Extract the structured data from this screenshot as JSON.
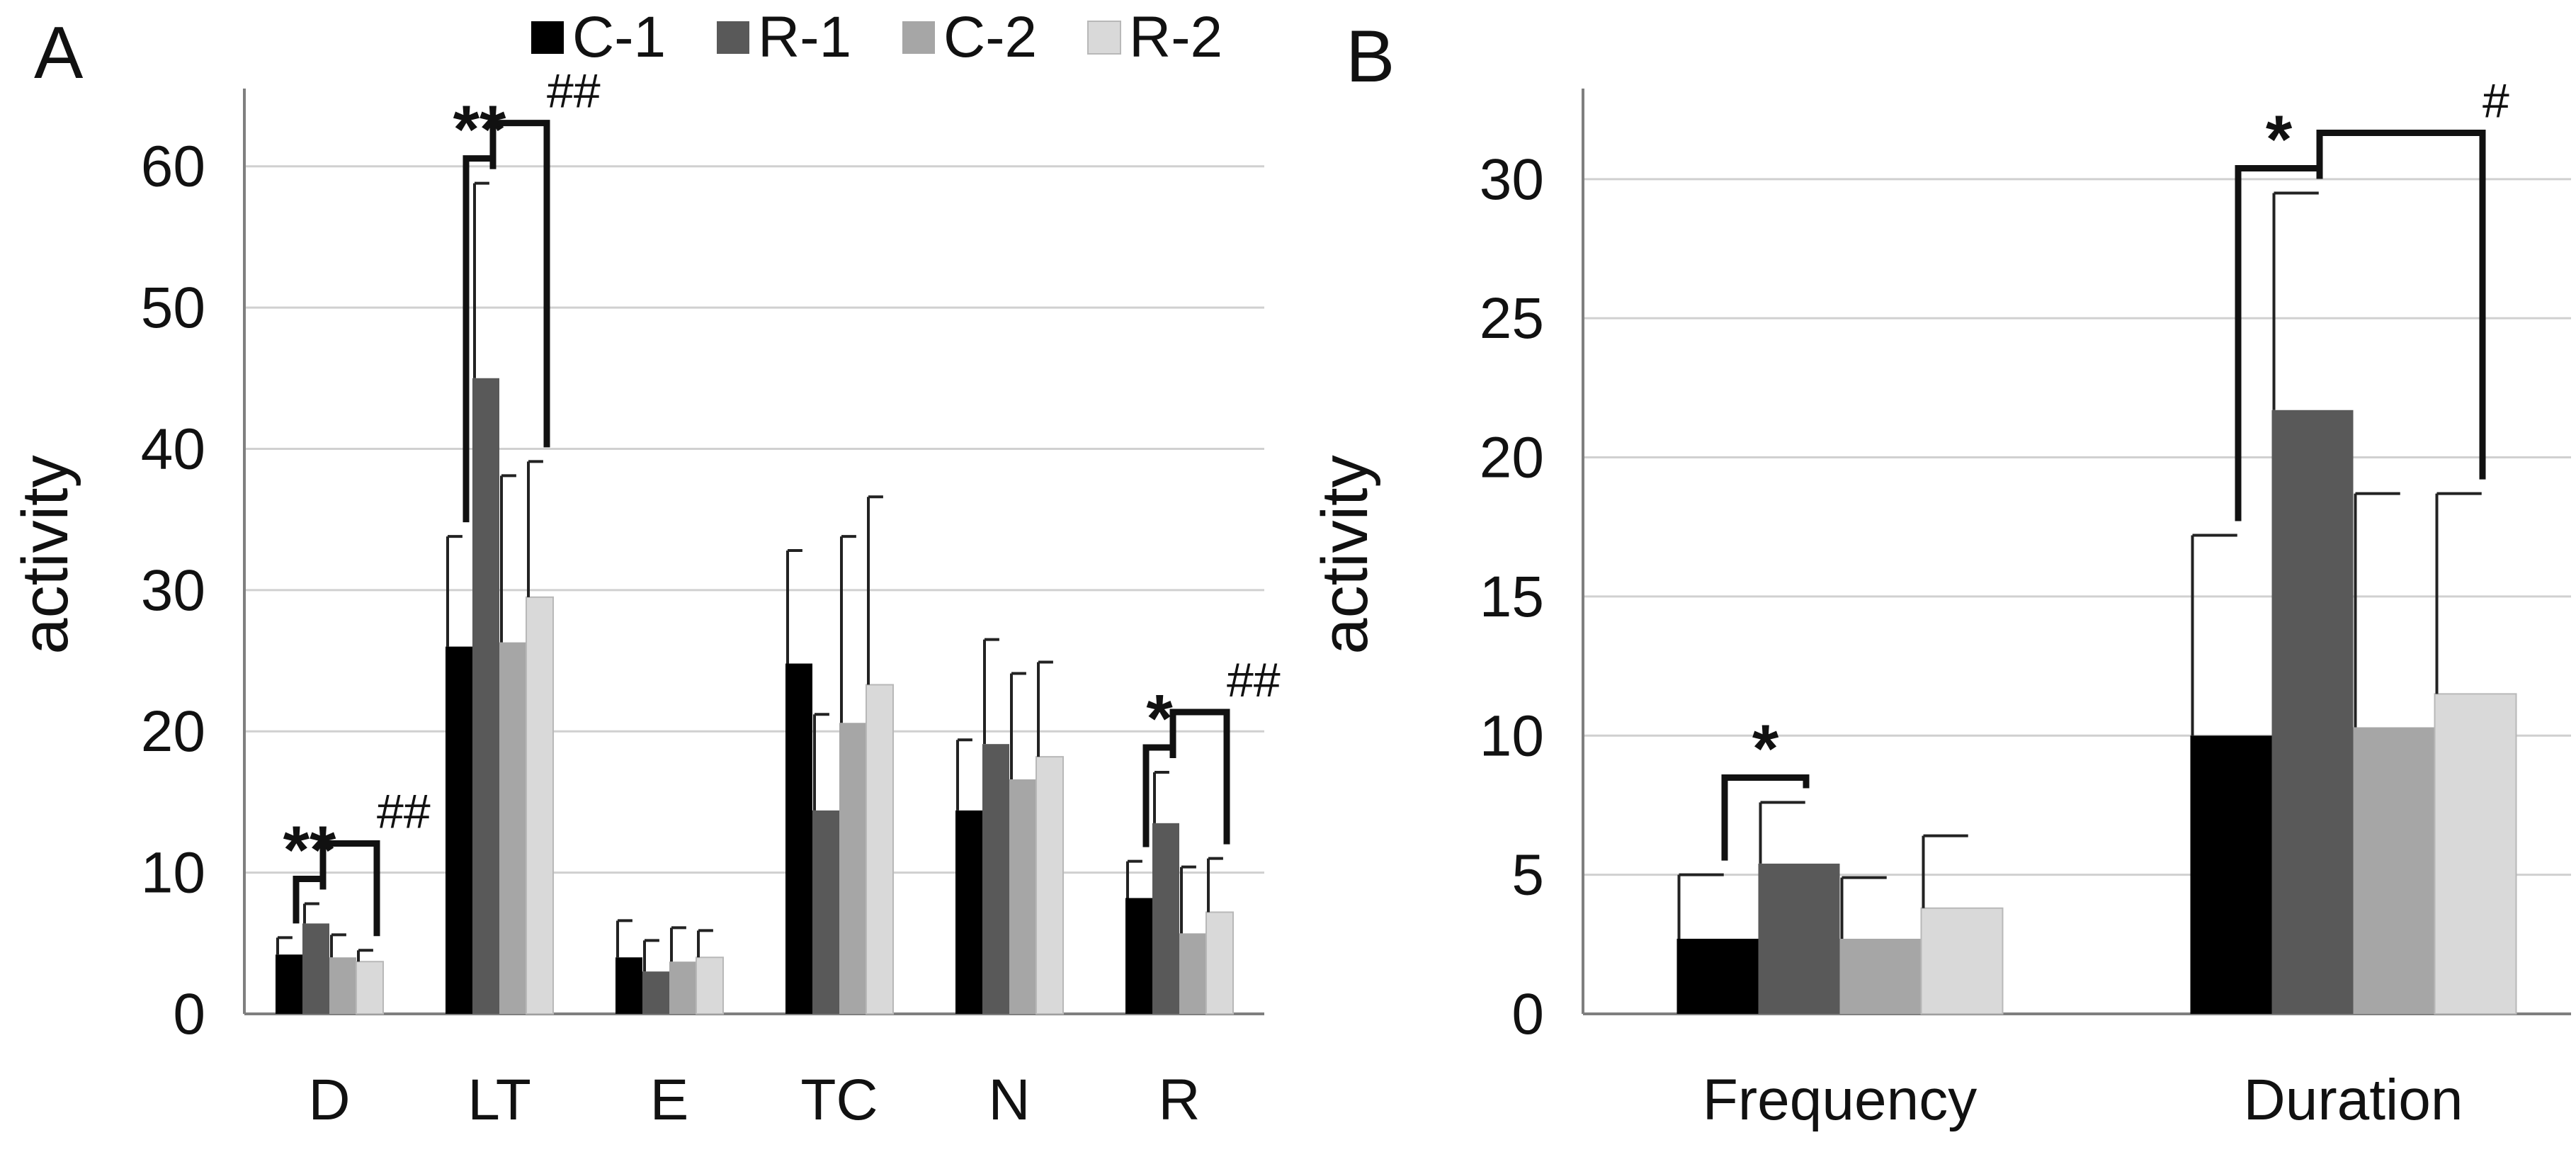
{
  "chart_data": [
    {
      "type": "bar",
      "panel_label": "A",
      "title": "",
      "xlabel": "",
      "ylabel": "activity",
      "ylim": [
        0,
        65
      ],
      "yticks": [
        "0",
        "10",
        "20",
        "30",
        "40",
        "50",
        "60"
      ],
      "grid": true,
      "categories": [
        "D",
        "LT",
        "E",
        "TC",
        "N",
        "R"
      ],
      "series": [
        {
          "name": "C-1",
          "color": "#000000",
          "values": [
            4.2,
            26.0,
            4.0,
            24.8,
            14.4,
            8.2
          ],
          "errors": [
            1.2,
            7.8,
            2.6,
            8.0,
            5.0,
            2.6
          ]
        },
        {
          "name": "R-1",
          "color": "#595959",
          "values": [
            6.4,
            45.0,
            3.0,
            14.4,
            19.1,
            13.5
          ],
          "errors": [
            1.4,
            13.8,
            2.2,
            6.8,
            7.4,
            3.6
          ]
        },
        {
          "name": "C-2",
          "color": "#a6a6a6",
          "values": [
            4.0,
            26.3,
            3.7,
            20.6,
            16.6,
            5.7
          ],
          "errors": [
            1.6,
            11.8,
            2.4,
            13.2,
            7.5,
            4.7
          ]
        },
        {
          "name": "R-2",
          "color": "#d9d9d9",
          "values": [
            3.7,
            29.5,
            4.0,
            23.3,
            18.2,
            7.2
          ],
          "errors": [
            0.8,
            9.6,
            1.9,
            13.3,
            6.7,
            3.8
          ]
        }
      ],
      "annotations": [
        {
          "text": "**",
          "category": "D",
          "between": [
            "C-1",
            "R-1"
          ]
        },
        {
          "text": "##",
          "category": "D",
          "between": [
            "R-1",
            "R-2"
          ]
        },
        {
          "text": "**",
          "category": "LT",
          "between": [
            "C-1",
            "R-1"
          ]
        },
        {
          "text": "##",
          "category": "LT",
          "between": [
            "R-1",
            "R-2"
          ]
        },
        {
          "text": "*",
          "category": "R",
          "between": [
            "C-1",
            "R-1"
          ]
        },
        {
          "text": "##",
          "category": "R",
          "between": [
            "R-1",
            "R-2"
          ]
        }
      ],
      "legend": {
        "position": "top",
        "entries": [
          "C-1",
          "R-1",
          "C-2",
          "R-2"
        ]
      }
    },
    {
      "type": "bar",
      "panel_label": "B",
      "title": "",
      "xlabel": "",
      "ylabel": "activity",
      "ylim": [
        0,
        33
      ],
      "yticks": [
        "0",
        "5",
        "10",
        "15",
        "20",
        "25",
        "30"
      ],
      "grid": true,
      "categories": [
        "Frequency",
        "Duration"
      ],
      "series": [
        {
          "name": "C-1",
          "color": "#000000",
          "values": [
            2.7,
            10.0
          ],
          "errors": [
            2.3,
            7.2
          ]
        },
        {
          "name": "R-1",
          "color": "#595959",
          "values": [
            5.4,
            21.7
          ],
          "errors": [
            2.2,
            7.8
          ]
        },
        {
          "name": "C-2",
          "color": "#a6a6a6",
          "values": [
            2.7,
            10.3
          ],
          "errors": [
            2.2,
            8.4
          ]
        },
        {
          "name": "R-2",
          "color": "#d9d9d9",
          "values": [
            3.8,
            11.5
          ],
          "errors": [
            2.6,
            7.2
          ]
        }
      ],
      "annotations": [
        {
          "text": "*",
          "category": "Frequency",
          "between": [
            "C-1",
            "R-1"
          ]
        },
        {
          "text": "*",
          "category": "Duration",
          "between": [
            "C-1",
            "R-1"
          ]
        },
        {
          "text": "#",
          "category": "Duration",
          "between": [
            "R-1",
            "R-2"
          ]
        }
      ]
    }
  ]
}
